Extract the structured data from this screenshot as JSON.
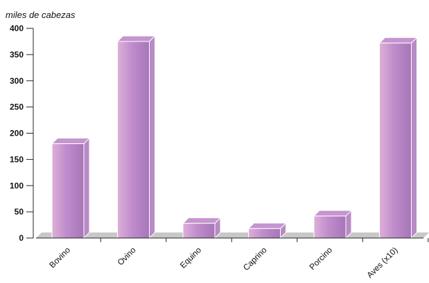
{
  "chart_data": {
    "type": "bar",
    "ylabel": "miles de cabezas",
    "categories": [
      "Bovino",
      "Ovino",
      "Equino",
      "Caprino",
      "Porcino",
      "Aves (x10)"
    ],
    "values": [
      180,
      375,
      28,
      18,
      42,
      372
    ],
    "yticks": [
      0,
      50,
      100,
      150,
      200,
      250,
      300,
      350,
      400
    ],
    "ylim": [
      0,
      400
    ],
    "grid": false,
    "legend": "none",
    "style": "3d",
    "colors": {
      "bar_light": "#ddb0d8",
      "bar_mid": "#c08ccc",
      "bar_dark": "#a676b6",
      "bar_side": "#b88ac6",
      "bar_top": "#c595cf",
      "floor": "#c8c8c8",
      "axis": "#222222"
    }
  }
}
